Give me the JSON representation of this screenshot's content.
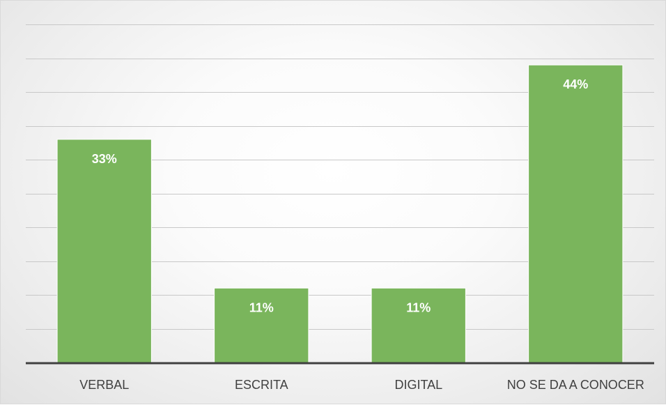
{
  "chart_data": {
    "type": "bar",
    "categories": [
      "VERBAL",
      "ESCRITA",
      "DIGITAL",
      "NO SE DA A CONOCER"
    ],
    "values": [
      33,
      11,
      11,
      44
    ],
    "data_labels": [
      "33%",
      "11%",
      "11%",
      "44%"
    ],
    "unit": "%",
    "ylim": [
      0,
      50
    ],
    "grid_step": 5,
    "grid": true,
    "legend": "none",
    "title": "",
    "xlabel": "",
    "ylabel": "",
    "colors": {
      "bar": "#7ab55c",
      "bar_border": "#ffffff",
      "data_label": "#ffffff",
      "tick_label": "#404040",
      "gridline": "#c8c8c8",
      "axis": "#404040"
    }
  }
}
